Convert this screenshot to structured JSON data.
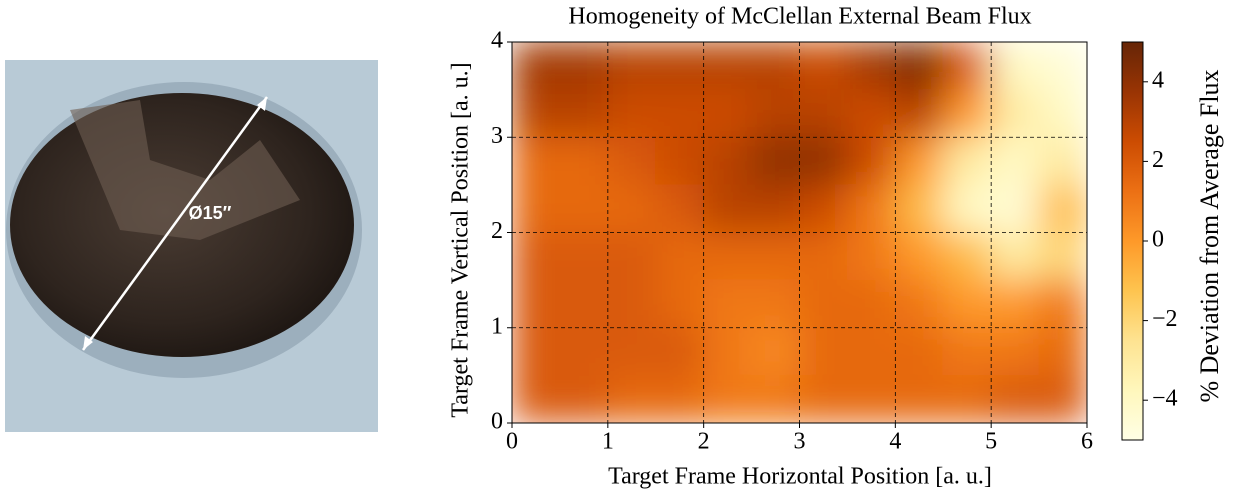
{
  "photo": {
    "label": "Ø15″"
  },
  "chart_data": {
    "type": "heatmap",
    "title": "Homogeneity of McClellan External Beam Flux",
    "xlabel": "Target Frame Horizontal Position [a. u.]",
    "ylabel": "Target Frame Vertical Position [a. u.]",
    "colorbar_label": "% Deviation from Average Flux",
    "xlim": [
      0,
      6
    ],
    "ylim": [
      0,
      4
    ],
    "xticks": [
      0,
      1,
      2,
      3,
      4,
      5,
      6
    ],
    "yticks": [
      0,
      1,
      2,
      3,
      4
    ],
    "clim": [
      -5,
      5
    ],
    "cticks": [
      {
        "value": -4,
        "label": "−4"
      },
      {
        "value": -2,
        "label": "−2"
      },
      0,
      2,
      4
    ],
    "colormap": [
      "#ffffe5",
      "#fff7bc",
      "#fee391",
      "#fec44f",
      "#fe9929",
      "#ec7014",
      "#cc4c02",
      "#993404",
      "#662506"
    ],
    "grid": true,
    "x": [
      0.25,
      0.75,
      1.25,
      1.75,
      2.25,
      2.75,
      3.25,
      3.75,
      4.25,
      4.75,
      5.25,
      5.75
    ],
    "y": [
      3.75,
      3.25,
      2.75,
      2.25,
      1.75,
      1.25,
      0.75,
      0.25
    ],
    "values": [
      [
        3.5,
        3.5,
        3,
        3,
        3,
        3,
        2.5,
        3.5,
        4.5,
        2,
        -4,
        -4.5
      ],
      [
        3,
        3,
        2.5,
        2.5,
        2.5,
        3,
        3,
        2.5,
        3,
        0,
        -3,
        -4
      ],
      [
        1.5,
        1.5,
        2,
        2.5,
        3,
        4,
        4,
        2.5,
        0,
        -3,
        -4,
        -3
      ],
      [
        1.5,
        1.5,
        1.5,
        2,
        3,
        3,
        2.5,
        1,
        -1,
        -4,
        -4.5,
        -1
      ],
      [
        2,
        2,
        2,
        1.5,
        1.5,
        1.5,
        1.5,
        1,
        0,
        -1,
        -3,
        -2
      ],
      [
        2,
        2,
        2,
        1.5,
        1,
        1,
        1.5,
        1.5,
        1,
        0,
        0,
        1
      ],
      [
        2,
        2,
        2,
        2,
        1,
        0.5,
        1.5,
        1.5,
        1.5,
        1,
        1,
        1.5
      ],
      [
        2,
        2,
        1.5,
        1.5,
        1,
        1,
        1.5,
        1.5,
        1.5,
        1.5,
        2,
        2
      ]
    ]
  }
}
